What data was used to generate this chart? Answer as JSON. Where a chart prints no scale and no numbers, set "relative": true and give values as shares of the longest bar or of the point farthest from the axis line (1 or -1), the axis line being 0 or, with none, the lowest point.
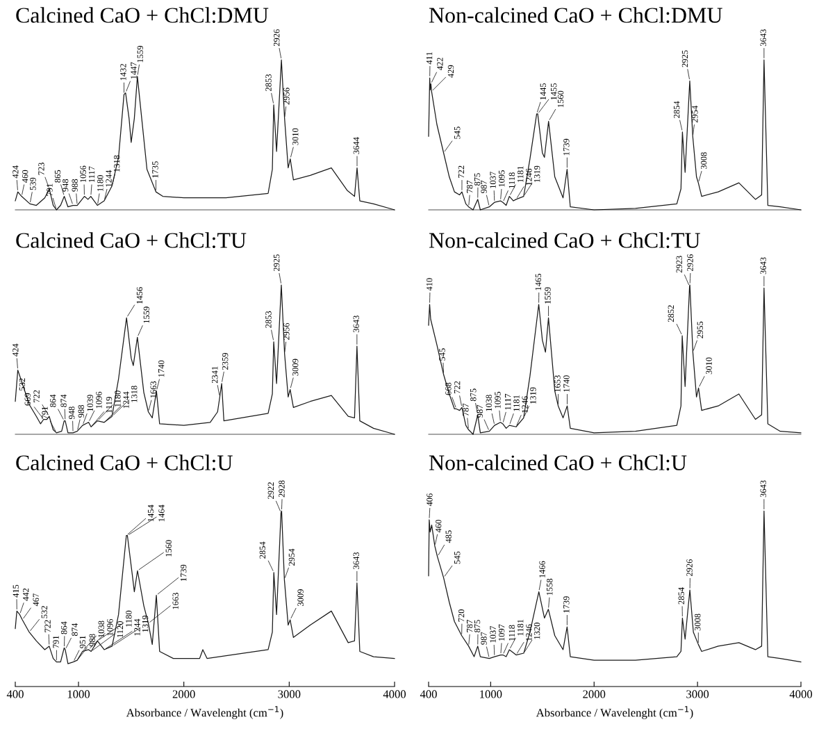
{
  "chart_data": [
    {
      "type": "line",
      "title": "Calcined CaO + ChCl:DMU",
      "relative": true,
      "tick_labels": false,
      "xlim": [
        400,
        4000
      ],
      "xticks": [
        400,
        1000,
        2000,
        3000,
        4000
      ],
      "x": [
        400,
        424,
        460,
        539,
        600,
        680,
        723,
        760,
        791,
        830,
        865,
        900,
        948,
        988,
        1056,
        1090,
        1117,
        1180,
        1244,
        1318,
        1380,
        1432,
        1447,
        1480,
        1500,
        1530,
        1559,
        1600,
        1650,
        1735,
        1800,
        2000,
        2400,
        2800,
        2840,
        2853,
        2880,
        2926,
        2956,
        2990,
        3010,
        3040,
        3200,
        3400,
        3550,
        3620,
        3644,
        3670,
        3800,
        4000
      ],
      "series": [
        {
          "color": "#1a1a1a",
          "values": [
            0.06,
            0.12,
            0.09,
            0.04,
            0.03,
            0.08,
            0.14,
            0.03,
            0,
            0.03,
            0.09,
            0.02,
            0.03,
            0.03,
            0.09,
            0.07,
            0.09,
            0.03,
            0.06,
            0.16,
            0.35,
            0.77,
            0.78,
            0.61,
            0.45,
            0.61,
            0.89,
            0.61,
            0.27,
            0.12,
            0.09,
            0.08,
            0.08,
            0.11,
            0.27,
            0.7,
            0.39,
            1,
            0.61,
            0.28,
            0.34,
            0.2,
            0.23,
            0.28,
            0.13,
            0.09,
            0.28,
            0.06,
            0.04,
            0
          ]
        }
      ],
      "annotations": [
        {
          "text": "424",
          "x": 424,
          "y": 0.12
        },
        {
          "text": "460",
          "x": 460,
          "y": 0.09
        },
        {
          "text": "539",
          "x": 539,
          "y": 0.04
        },
        {
          "text": "723",
          "x": 723,
          "y": 0.14
        },
        {
          "text": "791",
          "x": 791,
          "y": 0
        },
        {
          "text": "865",
          "x": 865,
          "y": 0.09
        },
        {
          "text": "948",
          "x": 948,
          "y": 0.03
        },
        {
          "text": "988",
          "x": 988,
          "y": 0.03
        },
        {
          "text": "1056",
          "x": 1056,
          "y": 0.09
        },
        {
          "text": "1117",
          "x": 1117,
          "y": 0.09
        },
        {
          "text": "1180",
          "x": 1180,
          "y": 0.03
        },
        {
          "text": "1244",
          "x": 1244,
          "y": 0.06
        },
        {
          "text": "1318",
          "x": 1318,
          "y": 0.16
        },
        {
          "text": "1432",
          "x": 1432,
          "y": 0.77
        },
        {
          "text": "1447",
          "x": 1447,
          "y": 0.78
        },
        {
          "text": "1559",
          "x": 1559,
          "y": 0.89
        },
        {
          "text": "1735",
          "x": 1735,
          "y": 0.12
        },
        {
          "text": "2853",
          "x": 2853,
          "y": 0.7
        },
        {
          "text": "2926",
          "x": 2926,
          "y": 1
        },
        {
          "text": "2956",
          "x": 2956,
          "y": 0.61
        },
        {
          "text": "3010",
          "x": 3010,
          "y": 0.34
        },
        {
          "text": "3644",
          "x": 3644,
          "y": 0.28
        }
      ]
    },
    {
      "type": "line",
      "title": "Non-calcined CaO + ChCl:DMU",
      "relative": true,
      "tick_labels": false,
      "xlim": [
        400,
        4000
      ],
      "xticks": [
        400,
        1000,
        2000,
        3000,
        4000
      ],
      "x": [
        400,
        411,
        415,
        422,
        429,
        480,
        545,
        600,
        650,
        700,
        722,
        760,
        787,
        830,
        875,
        900,
        987,
        1037,
        1095,
        1118,
        1150,
        1181,
        1220,
        1246,
        1319,
        1380,
        1445,
        1455,
        1500,
        1520,
        1560,
        1620,
        1700,
        1739,
        1770,
        2000,
        2400,
        2800,
        2840,
        2854,
        2880,
        2925,
        2954,
        2990,
        3008,
        3040,
        3200,
        3400,
        3560,
        3620,
        3643,
        3680,
        3800,
        4000
      ],
      "series": [
        {
          "color": "#1a1a1a",
          "values": [
            0.49,
            0.88,
            0.8,
            0.84,
            0.79,
            0.57,
            0.38,
            0.22,
            0.12,
            0.1,
            0.12,
            0.04,
            0.02,
            0,
            0.07,
            0,
            0.02,
            0.05,
            0.06,
            0.05,
            0.03,
            0.09,
            0.06,
            0.07,
            0.09,
            0.34,
            0.64,
            0.64,
            0.38,
            0.35,
            0.59,
            0.22,
            0.08,
            0.27,
            0.02,
            0,
            0.01,
            0.04,
            0.14,
            0.52,
            0.25,
            0.86,
            0.49,
            0.22,
            0.18,
            0.09,
            0.12,
            0.18,
            0.07,
            0.1,
            1,
            0.03,
            0.02,
            0
          ]
        }
      ],
      "annotations": [
        {
          "text": "411",
          "x": 411,
          "y": 0.88
        },
        {
          "text": "422",
          "x": 422,
          "y": 0.84
        },
        {
          "text": "429",
          "x": 429,
          "y": 0.79
        },
        {
          "text": "545",
          "x": 545,
          "y": 0.38
        },
        {
          "text": "722",
          "x": 722,
          "y": 0.12
        },
        {
          "text": "787",
          "x": 787,
          "y": 0.02
        },
        {
          "text": "875",
          "x": 875,
          "y": 0.07
        },
        {
          "text": "987",
          "x": 987,
          "y": 0.02
        },
        {
          "text": "1037",
          "x": 1037,
          "y": 0.05
        },
        {
          "text": "1095",
          "x": 1095,
          "y": 0.06
        },
        {
          "text": "1118",
          "x": 1118,
          "y": 0.05
        },
        {
          "text": "1181",
          "x": 1181,
          "y": 0.09
        },
        {
          "text": "1246",
          "x": 1246,
          "y": 0.07
        },
        {
          "text": "1319",
          "x": 1319,
          "y": 0.09
        },
        {
          "text": "1445",
          "x": 1445,
          "y": 0.64
        },
        {
          "text": "1455",
          "x": 1455,
          "y": 0.64
        },
        {
          "text": "1560",
          "x": 1560,
          "y": 0.59
        },
        {
          "text": "1739",
          "x": 1739,
          "y": 0.27
        },
        {
          "text": "2854",
          "x": 2854,
          "y": 0.52
        },
        {
          "text": "2925",
          "x": 2925,
          "y": 0.86
        },
        {
          "text": "2954",
          "x": 2954,
          "y": 0.49
        },
        {
          "text": "3008",
          "x": 3008,
          "y": 0.18
        },
        {
          "text": "3643",
          "x": 3643,
          "y": 1
        }
      ]
    },
    {
      "type": "line",
      "title": "Calcined CaO + ChCl:TU",
      "relative": true,
      "tick_labels": false,
      "xlim": [
        400,
        4000
      ],
      "xticks": [
        400,
        1000,
        2000,
        3000,
        4000
      ],
      "x": [
        400,
        424,
        500,
        532,
        600,
        640,
        669,
        700,
        722,
        760,
        791,
        840,
        864,
        874,
        900,
        948,
        988,
        1039,
        1096,
        1119,
        1180,
        1244,
        1318,
        1380,
        1456,
        1500,
        1520,
        1559,
        1620,
        1663,
        1700,
        1740,
        1770,
        2000,
        2250,
        2320,
        2341,
        2359,
        2380,
        2800,
        2840,
        2853,
        2880,
        2925,
        2956,
        2990,
        3009,
        3040,
        3200,
        3400,
        3560,
        3620,
        3643,
        3670,
        3800,
        4000
      ],
      "series": [
        {
          "color": "#1a1a1a",
          "values": [
            0.22,
            0.43,
            0.27,
            0.2,
            0.12,
            0.07,
            0.1,
            0.1,
            0.12,
            0.03,
            0.01,
            0.02,
            0.09,
            0.09,
            0.01,
            0.01,
            0.02,
            0.06,
            0.08,
            0.05,
            0.09,
            0.08,
            0.12,
            0.37,
            0.78,
            0.51,
            0.46,
            0.65,
            0.28,
            0.15,
            0.11,
            0.29,
            0.07,
            0.06,
            0.08,
            0.15,
            0.25,
            0.34,
            0.09,
            0.14,
            0.27,
            0.62,
            0.34,
            1,
            0.54,
            0.25,
            0.3,
            0.18,
            0.22,
            0.26,
            0.12,
            0.11,
            0.59,
            0.09,
            0.04,
            0
          ]
        }
      ],
      "annotations": [
        {
          "text": "424",
          "x": 424,
          "y": 0.43
        },
        {
          "text": "532",
          "x": 532,
          "y": 0.2
        },
        {
          "text": "669",
          "x": 669,
          "y": 0.1
        },
        {
          "text": "722",
          "x": 722,
          "y": 0.12
        },
        {
          "text": "791",
          "x": 791,
          "y": 0.01
        },
        {
          "text": "864",
          "x": 864,
          "y": 0.09
        },
        {
          "text": "874",
          "x": 874,
          "y": 0.09
        },
        {
          "text": "948",
          "x": 948,
          "y": 0.01
        },
        {
          "text": "988",
          "x": 988,
          "y": 0.02
        },
        {
          "text": "1039",
          "x": 1039,
          "y": 0.06
        },
        {
          "text": "1096",
          "x": 1096,
          "y": 0.08
        },
        {
          "text": "1119",
          "x": 1119,
          "y": 0.05
        },
        {
          "text": "1180",
          "x": 1180,
          "y": 0.09
        },
        {
          "text": "1244",
          "x": 1244,
          "y": 0.08
        },
        {
          "text": "1318",
          "x": 1318,
          "y": 0.12
        },
        {
          "text": "1456",
          "x": 1456,
          "y": 0.78
        },
        {
          "text": "1559",
          "x": 1559,
          "y": 0.65
        },
        {
          "text": "1663",
          "x": 1663,
          "y": 0.15
        },
        {
          "text": "1740",
          "x": 1740,
          "y": 0.29
        },
        {
          "text": "2341",
          "x": 2341,
          "y": 0.25
        },
        {
          "text": "2359",
          "x": 2359,
          "y": 0.34
        },
        {
          "text": "2853",
          "x": 2853,
          "y": 0.62
        },
        {
          "text": "2925",
          "x": 2925,
          "y": 1
        },
        {
          "text": "2956",
          "x": 2956,
          "y": 0.54
        },
        {
          "text": "3009",
          "x": 3009,
          "y": 0.3
        },
        {
          "text": "3643",
          "x": 3643,
          "y": 0.59
        }
      ]
    },
    {
      "type": "line",
      "title": "Non-calcined CaO + ChCl:TU",
      "relative": true,
      "tick_labels": false,
      "xlim": [
        400,
        4000
      ],
      "xticks": [
        400,
        1000,
        2000,
        3000,
        4000
      ],
      "x": [
        400,
        410,
        420,
        480,
        545,
        600,
        650,
        668,
        700,
        722,
        760,
        787,
        830,
        875,
        900,
        987,
        1038,
        1095,
        1117,
        1150,
        1181,
        1246,
        1319,
        1380,
        1465,
        1500,
        1530,
        1559,
        1620,
        1653,
        1700,
        1740,
        1770,
        2000,
        2400,
        2800,
        2840,
        2852,
        2880,
        2923,
        2926,
        2955,
        2990,
        3010,
        3040,
        3200,
        3400,
        3560,
        3620,
        3643,
        3680,
        3800,
        4000
      ],
      "series": [
        {
          "color": "#1a1a1a",
          "values": [
            0.73,
            0.87,
            0.77,
            0.6,
            0.4,
            0.27,
            0.17,
            0.17,
            0.16,
            0.18,
            0.06,
            0.03,
            0,
            0.13,
            0.01,
            0.02,
            0.06,
            0.08,
            0.07,
            0.04,
            0.06,
            0.05,
            0.11,
            0.39,
            0.87,
            0.63,
            0.55,
            0.78,
            0.29,
            0.19,
            0.11,
            0.19,
            0.04,
            0.01,
            0.02,
            0.06,
            0.19,
            0.66,
            0.32,
            0.99,
            1,
            0.55,
            0.25,
            0.31,
            0.16,
            0.19,
            0.27,
            0.1,
            0.13,
            0.98,
            0.07,
            0.02,
            0.01
          ]
        }
      ],
      "annotations": [
        {
          "text": "410",
          "x": 410,
          "y": 0.87
        },
        {
          "text": "545",
          "x": 545,
          "y": 0.4
        },
        {
          "text": "668",
          "x": 668,
          "y": 0.17
        },
        {
          "text": "722",
          "x": 722,
          "y": 0.18
        },
        {
          "text": "787",
          "x": 787,
          "y": 0.03
        },
        {
          "text": "875",
          "x": 875,
          "y": 0.13
        },
        {
          "text": "987",
          "x": 987,
          "y": 0.02
        },
        {
          "text": "1038",
          "x": 1038,
          "y": 0.06
        },
        {
          "text": "1095",
          "x": 1095,
          "y": 0.08
        },
        {
          "text": "1117",
          "x": 1117,
          "y": 0.07
        },
        {
          "text": "1181",
          "x": 1181,
          "y": 0.06
        },
        {
          "text": "1246",
          "x": 1246,
          "y": 0.05
        },
        {
          "text": "1319",
          "x": 1319,
          "y": 0.11
        },
        {
          "text": "1465",
          "x": 1465,
          "y": 0.87
        },
        {
          "text": "1559",
          "x": 1559,
          "y": 0.78
        },
        {
          "text": "1653",
          "x": 1653,
          "y": 0.19
        },
        {
          "text": "1740",
          "x": 1740,
          "y": 0.19
        },
        {
          "text": "2852",
          "x": 2852,
          "y": 0.66
        },
        {
          "text": "2923",
          "x": 2923,
          "y": 0.99
        },
        {
          "text": "2926",
          "x": 2926,
          "y": 1
        },
        {
          "text": "2955",
          "x": 2955,
          "y": 0.55
        },
        {
          "text": "3010",
          "x": 3010,
          "y": 0.31
        },
        {
          "text": "3643",
          "x": 3643,
          "y": 0.98
        }
      ]
    },
    {
      "type": "line",
      "title": "Calcined CaO + ChCl:U",
      "relative": true,
      "tick_labels": "x",
      "xlabel": "Absorbance / Wavelenght (cm$^{−1}$)",
      "xlim": [
        400,
        4000
      ],
      "xticks": [
        400,
        1000,
        2000,
        3000,
        4000
      ],
      "x": [
        400,
        415,
        442,
        467,
        532,
        600,
        680,
        722,
        760,
        791,
        830,
        864,
        874,
        900,
        951,
        988,
        1038,
        1096,
        1120,
        1180,
        1244,
        1319,
        1380,
        1454,
        1464,
        1510,
        1530,
        1560,
        1620,
        1663,
        1700,
        1739,
        1770,
        1900,
        2150,
        2180,
        2220,
        2800,
        2840,
        2854,
        2880,
        2922,
        2928,
        2954,
        2990,
        3009,
        3040,
        3200,
        3400,
        3560,
        3620,
        3643,
        3670,
        3800,
        4000
      ],
      "series": [
        {
          "color": "#1a1a1a",
          "values": [
            0.33,
            0.43,
            0.41,
            0.38,
            0.31,
            0.26,
            0.21,
            0.23,
            0.16,
            0.14,
            0.14,
            0.22,
            0.21,
            0.13,
            0.14,
            0.15,
            0.2,
            0.21,
            0.2,
            0.26,
            0.21,
            0.23,
            0.41,
            0.86,
            0.86,
            0.64,
            0.54,
            0.66,
            0.46,
            0.36,
            0.24,
            0.52,
            0.2,
            0.16,
            0.16,
            0.21,
            0.16,
            0.21,
            0.31,
            0.65,
            0.41,
            0.99,
            1,
            0.61,
            0.35,
            0.38,
            0.28,
            0.35,
            0.43,
            0.25,
            0.26,
            0.59,
            0.2,
            0.17,
            0.16
          ]
        }
      ],
      "annotations": [
        {
          "text": "415",
          "x": 415,
          "y": 0.43
        },
        {
          "text": "442",
          "x": 442,
          "y": 0.41
        },
        {
          "text": "467",
          "x": 467,
          "y": 0.38
        },
        {
          "text": "532",
          "x": 532,
          "y": 0.31
        },
        {
          "text": "722",
          "x": 722,
          "y": 0.23
        },
        {
          "text": "791",
          "x": 791,
          "y": 0.14
        },
        {
          "text": "864",
          "x": 864,
          "y": 0.22
        },
        {
          "text": "874",
          "x": 874,
          "y": 0.21
        },
        {
          "text": "951",
          "x": 951,
          "y": 0.14
        },
        {
          "text": "988",
          "x": 988,
          "y": 0.15
        },
        {
          "text": "1038",
          "x": 1038,
          "y": 0.2
        },
        {
          "text": "1096",
          "x": 1096,
          "y": 0.21
        },
        {
          "text": "1120",
          "x": 1120,
          "y": 0.2
        },
        {
          "text": "1180",
          "x": 1180,
          "y": 0.26
        },
        {
          "text": "1244",
          "x": 1244,
          "y": 0.21
        },
        {
          "text": "1319",
          "x": 1319,
          "y": 0.23
        },
        {
          "text": "1454",
          "x": 1454,
          "y": 0.86
        },
        {
          "text": "1464",
          "x": 1464,
          "y": 0.86
        },
        {
          "text": "1560",
          "x": 1560,
          "y": 0.66
        },
        {
          "text": "1663",
          "x": 1663,
          "y": 0.36
        },
        {
          "text": "1739",
          "x": 1739,
          "y": 0.52
        },
        {
          "text": "2854",
          "x": 2854,
          "y": 0.65
        },
        {
          "text": "2922",
          "x": 2922,
          "y": 0.99
        },
        {
          "text": "2928",
          "x": 2928,
          "y": 1
        },
        {
          "text": "2954",
          "x": 2954,
          "y": 0.61
        },
        {
          "text": "3009",
          "x": 3009,
          "y": 0.38
        },
        {
          "text": "3643",
          "x": 3643,
          "y": 0.59
        }
      ]
    },
    {
      "type": "line",
      "title": "Non-calcined CaO + ChCl:U",
      "relative": true,
      "tick_labels": "x",
      "xlabel": "Absorbance / Wavelenght (cm$^{−1}$)",
      "xlim": [
        400,
        4000
      ],
      "xticks": [
        400,
        1000,
        2000,
        3000,
        4000
      ],
      "x": [
        400,
        406,
        415,
        430,
        460,
        485,
        545,
        600,
        650,
        720,
        787,
        840,
        875,
        900,
        987,
        1037,
        1097,
        1118,
        1150,
        1181,
        1246,
        1320,
        1380,
        1466,
        1520,
        1558,
        1620,
        1700,
        1739,
        1770,
        2000,
        2400,
        2800,
        2840,
        2854,
        2880,
        2926,
        2960,
        3008,
        3040,
        3200,
        3400,
        3560,
        3620,
        3643,
        3680,
        3800,
        4000
      ],
      "series": [
        {
          "color": "#1a1a1a",
          "values": [
            0.63,
            0.95,
            0.88,
            0.92,
            0.8,
            0.74,
            0.62,
            0.48,
            0.37,
            0.29,
            0.23,
            0.17,
            0.23,
            0.17,
            0.16,
            0.17,
            0.18,
            0.18,
            0.17,
            0.21,
            0.18,
            0.19,
            0.31,
            0.54,
            0.39,
            0.44,
            0.29,
            0.21,
            0.34,
            0.17,
            0.15,
            0.15,
            0.17,
            0.2,
            0.39,
            0.27,
            0.55,
            0.31,
            0.24,
            0.2,
            0.23,
            0.25,
            0.21,
            0.23,
            1,
            0.17,
            0.16,
            0.14
          ]
        }
      ],
      "annotations": [
        {
          "text": "406",
          "x": 406,
          "y": 0.95
        },
        {
          "text": "460",
          "x": 460,
          "y": 0.8
        },
        {
          "text": "485",
          "x": 485,
          "y": 0.74
        },
        {
          "text": "545",
          "x": 545,
          "y": 0.62
        },
        {
          "text": "720",
          "x": 720,
          "y": 0.29
        },
        {
          "text": "787",
          "x": 787,
          "y": 0.23
        },
        {
          "text": "875",
          "x": 875,
          "y": 0.23
        },
        {
          "text": "987",
          "x": 987,
          "y": 0.16
        },
        {
          "text": "1037",
          "x": 1037,
          "y": 0.17
        },
        {
          "text": "1097",
          "x": 1097,
          "y": 0.18
        },
        {
          "text": "1118",
          "x": 1118,
          "y": 0.18
        },
        {
          "text": "1181",
          "x": 1181,
          "y": 0.21
        },
        {
          "text": "1246",
          "x": 1246,
          "y": 0.18
        },
        {
          "text": "1320",
          "x": 1320,
          "y": 0.19
        },
        {
          "text": "1466",
          "x": 1466,
          "y": 0.54
        },
        {
          "text": "1558",
          "x": 1558,
          "y": 0.44
        },
        {
          "text": "1739",
          "x": 1739,
          "y": 0.34
        },
        {
          "text": "2854",
          "x": 2854,
          "y": 0.39
        },
        {
          "text": "2926",
          "x": 2926,
          "y": 0.55
        },
        {
          "text": "3008",
          "x": 3008,
          "y": 0.24
        },
        {
          "text": "3643",
          "x": 3643,
          "y": 1
        }
      ]
    }
  ]
}
